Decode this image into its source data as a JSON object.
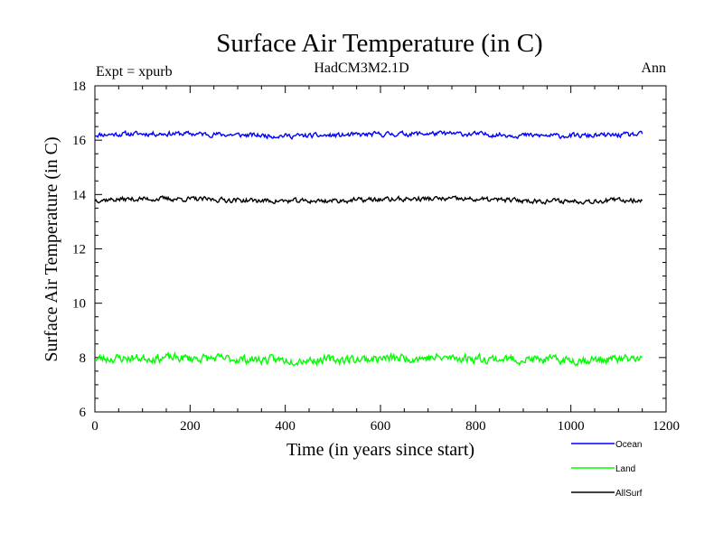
{
  "chart_data": {
    "type": "line",
    "title": "Surface Air Temperature (in C)",
    "subtitle_left": "Expt = xpurb",
    "subtitle_center": "HadCM3M2.1D",
    "subtitle_right": "Ann",
    "xlabel": "Time (in years since start)",
    "ylabel": "Surface Air Temperature (in C)",
    "xlim": [
      0,
      1200
    ],
    "ylim": [
      6,
      18
    ],
    "xticks": [
      "0",
      "200",
      "400",
      "600",
      "800",
      "1000",
      "1200"
    ],
    "yticks": [
      "6",
      "8",
      "10",
      "12",
      "14",
      "16",
      "18"
    ],
    "x_end": 1150,
    "series": [
      {
        "name": "Ocean",
        "color": "#0000ff",
        "mean": 16.2,
        "amplitude": 0.1,
        "seed": 11
      },
      {
        "name": "Land",
        "color": "#00ff00",
        "mean": 7.95,
        "amplitude": 0.18,
        "seed": 23
      },
      {
        "name": "AllSurf",
        "color": "#000000",
        "mean": 13.8,
        "amplitude": 0.1,
        "seed": 37
      }
    ]
  }
}
